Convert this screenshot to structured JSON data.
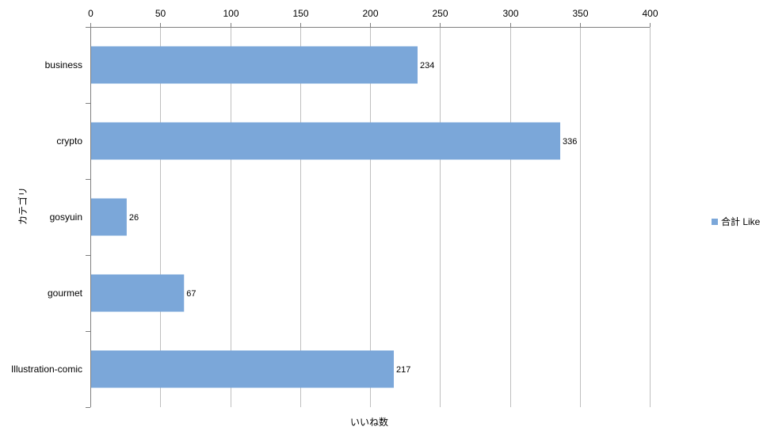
{
  "chart_data": {
    "type": "bar",
    "orientation": "horizontal",
    "categories": [
      "business",
      "crypto",
      "gosyuin",
      "gourmet",
      "Illustration-comic"
    ],
    "series": [
      {
        "name": "合計 Like",
        "values": [
          234,
          336,
          26,
          67,
          217
        ],
        "color": "#7BA7D9"
      }
    ],
    "data_labels": [
      "234",
      "336",
      "26",
      "67",
      "217"
    ],
    "xlim": [
      0,
      400
    ],
    "x_ticks": [
      "0",
      "50",
      "100",
      "150",
      "200",
      "250",
      "300",
      "350",
      "400"
    ],
    "x_axis_position": "top",
    "xlabel": "いいね数",
    "ylabel": "カテゴリ",
    "grid": true,
    "gridline_color": "#BFBFBF",
    "legend_position": "right"
  }
}
